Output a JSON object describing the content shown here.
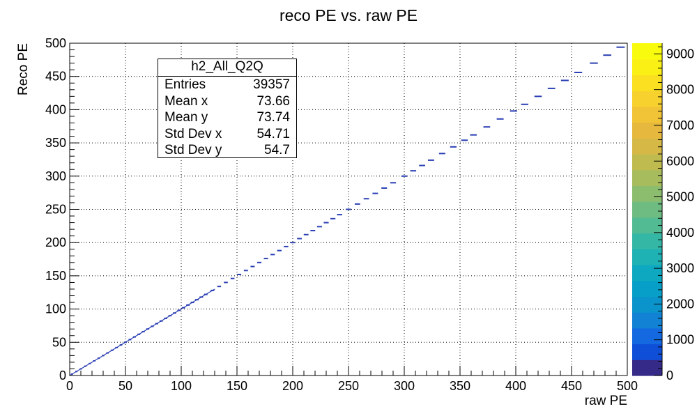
{
  "chart_data": {
    "type": "heatmap",
    "title": "reco PE vs. raw PE",
    "xlabel": "raw PE",
    "ylabel": "Reco PE",
    "xlim": [
      0,
      500
    ],
    "ylim": [
      0,
      500
    ],
    "x_ticks": [
      "0",
      "50",
      "100",
      "150",
      "200",
      "250",
      "300",
      "350",
      "400",
      "450",
      "500"
    ],
    "y_ticks": [
      "0",
      "50",
      "100",
      "150",
      "200",
      "250",
      "300",
      "350",
      "400",
      "450",
      "500"
    ],
    "grid": true,
    "colorbar": {
      "zlim": [
        0,
        9300
      ],
      "ticks": [
        "0",
        "1000",
        "2000",
        "3000",
        "4000",
        "5000",
        "6000",
        "7000",
        "8000",
        "9000"
      ],
      "colors": [
        "#352a87",
        "#0f4fd8",
        "#1469e0",
        "#1282d4",
        "#0b94cc",
        "#079fc8",
        "#0ea9c0",
        "#1eb2b5",
        "#35b7a6",
        "#52bb94",
        "#6fbc82",
        "#8cbd6f",
        "#a6bc5d",
        "#bfbb4f",
        "#d5b846",
        "#e6b93e",
        "#f1c336",
        "#f7d12d",
        "#fae020",
        "#fbf016",
        "#f9fb0e"
      ]
    },
    "series": [
      {
        "points": [
          [
            2,
            2
          ],
          [
            6,
            6
          ],
          [
            10,
            10
          ],
          [
            14,
            14
          ],
          [
            18,
            18
          ],
          [
            22,
            22
          ],
          [
            26,
            26
          ],
          [
            30,
            30
          ],
          [
            34,
            34
          ],
          [
            38,
            38
          ],
          [
            42,
            42
          ],
          [
            46,
            46
          ],
          [
            50,
            50
          ],
          [
            54,
            54
          ],
          [
            58,
            58
          ],
          [
            62,
            62
          ],
          [
            66,
            66
          ],
          [
            70,
            70
          ],
          [
            74,
            74
          ],
          [
            78,
            78
          ],
          [
            82,
            82
          ],
          [
            86,
            86
          ],
          [
            90,
            90
          ],
          [
            94,
            94
          ],
          [
            98,
            98
          ],
          [
            102,
            102
          ],
          [
            106,
            106
          ],
          [
            110,
            110
          ],
          [
            114,
            114
          ],
          [
            118,
            118
          ],
          [
            122,
            122
          ],
          [
            128,
            128
          ],
          [
            134,
            134
          ],
          [
            140,
            140
          ],
          [
            146,
            146
          ],
          [
            152,
            152
          ],
          [
            158,
            158
          ],
          [
            164,
            164
          ],
          [
            170,
            170
          ],
          [
            176,
            176
          ],
          [
            182,
            182
          ],
          [
            188,
            188
          ],
          [
            194,
            194
          ],
          [
            200,
            200
          ],
          [
            206,
            206
          ],
          [
            212,
            212
          ],
          [
            218,
            218
          ],
          [
            224,
            224
          ],
          [
            230,
            230
          ],
          [
            236,
            236
          ],
          [
            242,
            242
          ],
          [
            250,
            250
          ],
          [
            258,
            258
          ],
          [
            266,
            266
          ],
          [
            274,
            274
          ],
          [
            282,
            282
          ],
          [
            290,
            290
          ],
          [
            300,
            300
          ],
          [
            308,
            308
          ],
          [
            316,
            316
          ],
          [
            324,
            324
          ],
          [
            334,
            334
          ],
          [
            344,
            344
          ],
          [
            354,
            354
          ],
          [
            362,
            362
          ],
          [
            374,
            374
          ],
          [
            386,
            386
          ],
          [
            398,
            398
          ],
          [
            408,
            408
          ],
          [
            420,
            420
          ],
          [
            432,
            432
          ],
          [
            444,
            444
          ],
          [
            456,
            456
          ],
          [
            470,
            470
          ],
          [
            482,
            482
          ],
          [
            494,
            494
          ]
        ]
      }
    ]
  },
  "stats": {
    "title": "h2_All_Q2Q",
    "rows": [
      {
        "label": "Entries",
        "value": "39357"
      },
      {
        "label": "Mean x",
        "value": "73.66"
      },
      {
        "label": "Mean y",
        "value": "73.74"
      },
      {
        "label": "Std Dev x",
        "value": "54.71"
      },
      {
        "label": "Std Dev y",
        "value": "54.7"
      }
    ]
  }
}
